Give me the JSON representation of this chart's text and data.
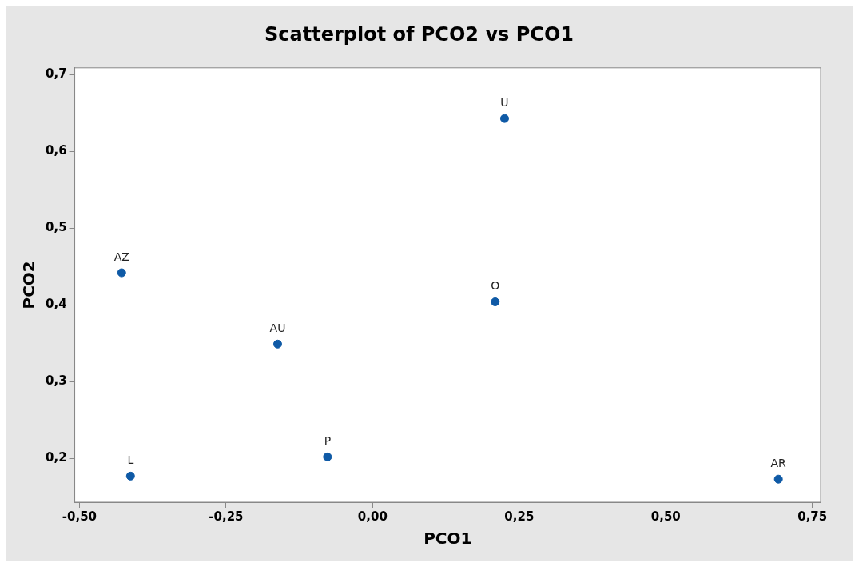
{
  "chart_data": {
    "type": "scatter",
    "title": "Scatterplot of PCO2 vs PCO1",
    "xlabel": "PCO1",
    "ylabel": "PCO2",
    "x": [
      0.225,
      -0.428,
      -0.162,
      0.209,
      -0.077,
      -0.413,
      0.692
    ],
    "series": [
      {
        "color": "#0f5aa6",
        "values": [
          0.643,
          0.442,
          0.349,
          0.404,
          0.202,
          0.177,
          0.173
        ]
      }
    ],
    "xlim": [
      -0.508,
      0.764
    ],
    "ylim": [
      0.143,
      0.709
    ],
    "xticks": [
      {
        "value": -0.5,
        "label": "-0,50"
      },
      {
        "value": -0.25,
        "label": "-0,25"
      },
      {
        "value": 0,
        "label": "0,00"
      },
      {
        "value": 0.25,
        "label": "0,25"
      },
      {
        "value": 0.5,
        "label": "0,50"
      },
      {
        "value": 0.75,
        "label": "0,75"
      }
    ],
    "yticks": [
      {
        "value": 0.2,
        "label": "0,2"
      },
      {
        "value": 0.3,
        "label": "0,3"
      },
      {
        "value": 0.4,
        "label": "0,4"
      },
      {
        "value": 0.5,
        "label": "0,5"
      },
      {
        "value": 0.6,
        "label": "0,6"
      },
      {
        "value": 0.7,
        "label": "0,7"
      }
    ],
    "annotations": [
      {
        "text": "U",
        "x": 0.225,
        "y": 0.643
      },
      {
        "text": "AZ",
        "x": -0.428,
        "y": 0.442
      },
      {
        "text": "AU",
        "x": -0.162,
        "y": 0.349
      },
      {
        "text": "O",
        "x": 0.209,
        "y": 0.404
      },
      {
        "text": "P",
        "x": -0.077,
        "y": 0.202
      },
      {
        "text": "L",
        "x": -0.413,
        "y": 0.177
      },
      {
        "text": "AR",
        "x": 0.692,
        "y": 0.173
      }
    ],
    "marker": "circle",
    "legend": false
  }
}
